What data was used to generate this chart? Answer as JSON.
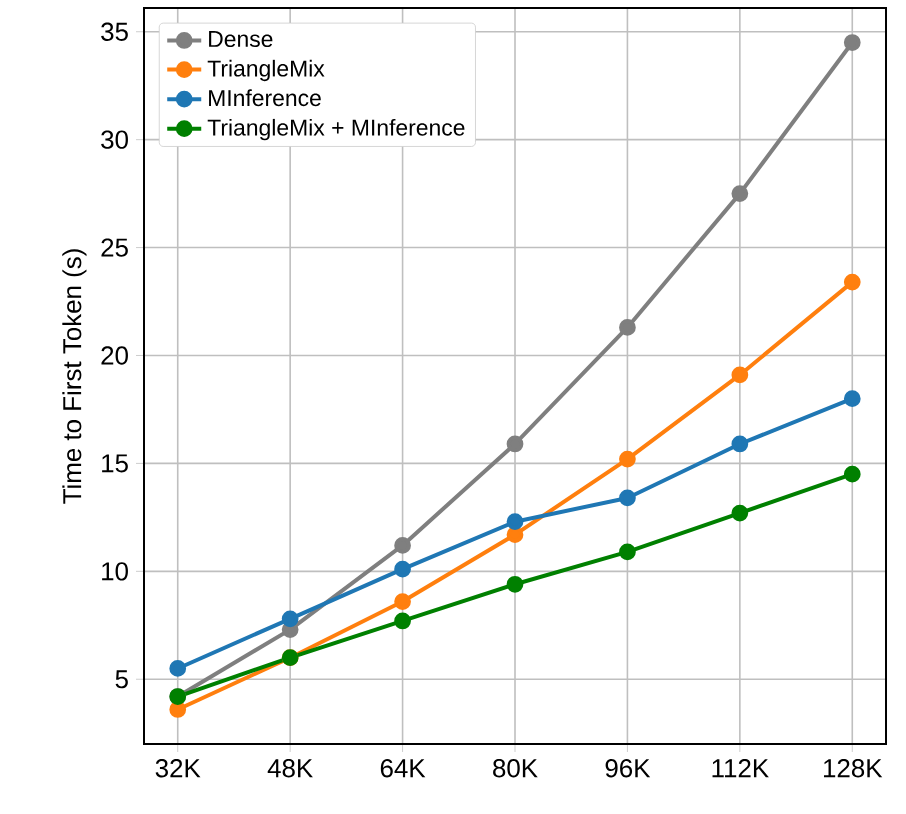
{
  "chart_data": {
    "type": "line",
    "ylabel": "Time to First Token (s)",
    "categories": [
      "32K",
      "48K",
      "64K",
      "80K",
      "96K",
      "112K",
      "128K"
    ],
    "series": [
      {
        "name": "Dense",
        "color": "#7f7f7f",
        "values": [
          4.2,
          7.3,
          11.2,
          15.9,
          21.3,
          27.5,
          34.5
        ]
      },
      {
        "name": "TriangleMix",
        "color": "#ff7f0e",
        "values": [
          3.6,
          6.0,
          8.6,
          11.7,
          15.2,
          19.1,
          23.4
        ]
      },
      {
        "name": "MInference",
        "color": "#1f77b4",
        "values": [
          5.5,
          7.8,
          10.1,
          12.3,
          13.4,
          15.9,
          18.0
        ]
      },
      {
        "name": "TriangleMix + MInference",
        "color": "#008000",
        "values": [
          4.2,
          6.0,
          7.7,
          9.4,
          10.9,
          12.7,
          14.5
        ]
      }
    ],
    "ylim": [
      2.0,
      36.1
    ],
    "yticks": [
      5,
      10,
      15,
      20,
      25,
      30,
      35
    ],
    "grid": true,
    "legend": "top left",
    "marker": "circle",
    "line_style": "solid"
  }
}
